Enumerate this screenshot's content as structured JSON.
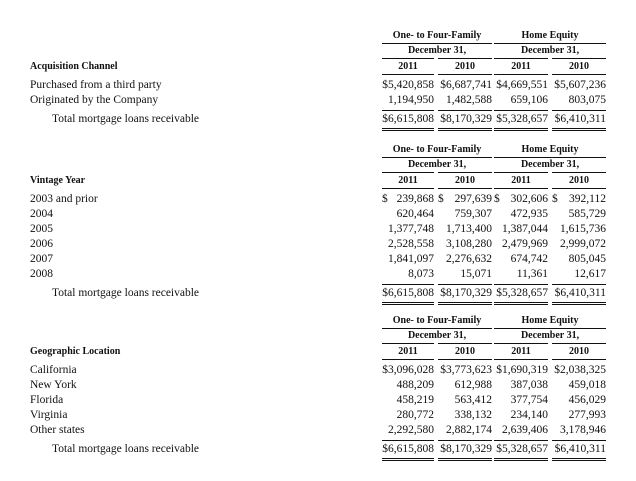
{
  "col_headers": {
    "group1": "One- to Four-Family",
    "group2": "Home Equity",
    "period": "December 31,",
    "years": [
      "2011",
      "2010",
      "2011",
      "2010"
    ]
  },
  "sections": [
    {
      "title": "Acquisition Channel",
      "rows": [
        {
          "label": "Purchased from a third party",
          "dollar": [
            false,
            false,
            false,
            false
          ],
          "values": [
            "$5,420,858",
            "$6,687,741",
            "$4,669,551",
            "$5,607,236"
          ]
        },
        {
          "label": "Originated by the Company",
          "dollar": [
            false,
            false,
            false,
            false
          ],
          "values": [
            "1,194,950",
            "1,482,588",
            "659,106",
            "803,075"
          ]
        }
      ],
      "total": {
        "label": "Total mortgage loans receivable",
        "values": [
          "$6,615,808",
          "$8,170,329",
          "$5,328,657",
          "$6,410,311"
        ]
      }
    },
    {
      "title": "Vintage Year",
      "rows": [
        {
          "label": "2003 and prior",
          "dollar": [
            true,
            true,
            true,
            true
          ],
          "values": [
            "239,868",
            "297,639",
            "302,606",
            "392,112"
          ]
        },
        {
          "label": "2004",
          "dollar": [
            false,
            false,
            false,
            false
          ],
          "values": [
            "620,464",
            "759,307",
            "472,935",
            "585,729"
          ]
        },
        {
          "label": "2005",
          "dollar": [
            false,
            false,
            false,
            false
          ],
          "values": [
            "1,377,748",
            "1,713,400",
            "1,387,044",
            "1,615,736"
          ]
        },
        {
          "label": "2006",
          "dollar": [
            false,
            false,
            false,
            false
          ],
          "values": [
            "2,528,558",
            "3,108,280",
            "2,479,969",
            "2,999,072"
          ]
        },
        {
          "label": "2007",
          "dollar": [
            false,
            false,
            false,
            false
          ],
          "values": [
            "1,841,097",
            "2,276,632",
            "674,742",
            "805,045"
          ]
        },
        {
          "label": "2008",
          "dollar": [
            false,
            false,
            false,
            false
          ],
          "values": [
            "8,073",
            "15,071",
            "11,361",
            "12,617"
          ]
        }
      ],
      "total": {
        "label": "Total mortgage loans receivable",
        "values": [
          "$6,615,808",
          "$8,170,329",
          "$5,328,657",
          "$6,410,311"
        ]
      }
    },
    {
      "title": "Geographic Location",
      "rows": [
        {
          "label": "California",
          "dollar": [
            false,
            false,
            false,
            false
          ],
          "values": [
            "$3,096,028",
            "$3,773,623",
            "$1,690,319",
            "$2,038,325"
          ]
        },
        {
          "label": "New York",
          "dollar": [
            false,
            false,
            false,
            false
          ],
          "values": [
            "488,209",
            "612,988",
            "387,038",
            "459,018"
          ]
        },
        {
          "label": "Florida",
          "dollar": [
            false,
            false,
            false,
            false
          ],
          "values": [
            "458,219",
            "563,412",
            "377,754",
            "456,029"
          ]
        },
        {
          "label": "Virginia",
          "dollar": [
            false,
            false,
            false,
            false
          ],
          "values": [
            "280,772",
            "338,132",
            "234,140",
            "277,993"
          ]
        },
        {
          "label": "Other states",
          "dollar": [
            false,
            false,
            false,
            false
          ],
          "values": [
            "2,292,580",
            "2,882,174",
            "2,639,406",
            "3,178,946"
          ]
        }
      ],
      "total": {
        "label": "Total mortgage loans receivable",
        "values": [
          "$6,615,808",
          "$8,170,329",
          "$5,328,657",
          "$6,410,311"
        ]
      }
    }
  ]
}
